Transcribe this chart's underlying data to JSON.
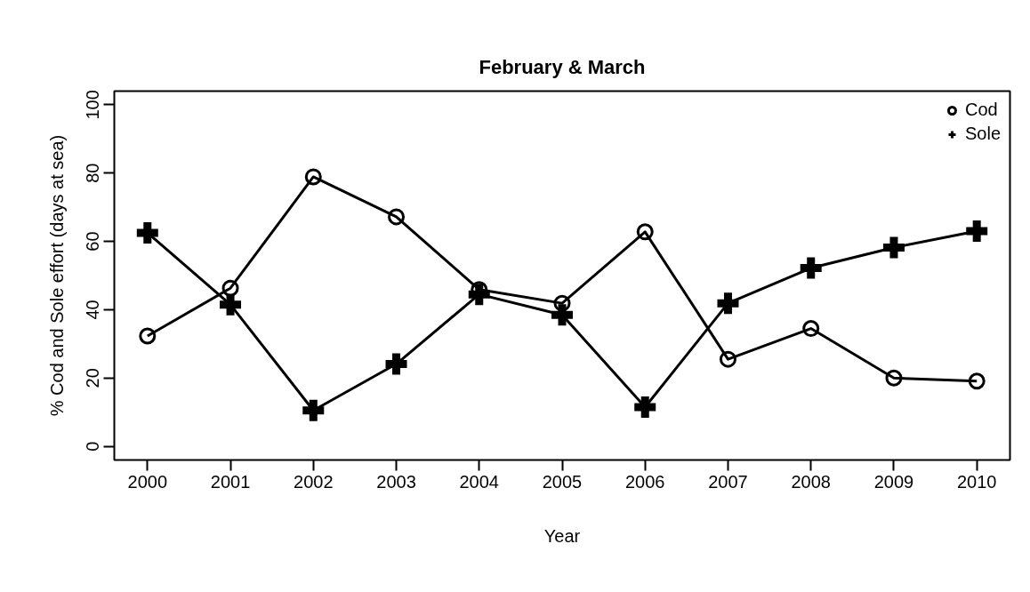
{
  "chart_data": {
    "type": "line",
    "title": "February & March",
    "xlabel": "Year",
    "ylabel": "% Cod and Sole effort (days at sea)",
    "x": [
      2000,
      2001,
      2002,
      2003,
      2004,
      2005,
      2006,
      2007,
      2008,
      2009,
      2010
    ],
    "series": [
      {
        "name": "Cod",
        "color": "#000000",
        "marker": "circle",
        "values": [
          32.3,
          46.3,
          78.9,
          67.2,
          45.9,
          41.9,
          62.8,
          25.5,
          34.5,
          20.0,
          19.1
        ]
      },
      {
        "name": "Sole",
        "color": "#000000",
        "marker": "cross",
        "values": [
          62.5,
          41.5,
          10.5,
          24.1,
          44.5,
          38.5,
          11.5,
          41.9,
          52.2,
          58.2,
          63.0
        ]
      }
    ],
    "xlim": [
      1999.6,
      2010.4
    ],
    "xticks": [
      2000,
      2001,
      2002,
      2003,
      2004,
      2005,
      2006,
      2007,
      2008,
      2009,
      2010
    ],
    "ylim": [
      -4,
      104
    ],
    "yticks": [
      0,
      20,
      40,
      60,
      80,
      100
    ],
    "grid": false,
    "legend": "top right",
    "line_style": "solid"
  }
}
